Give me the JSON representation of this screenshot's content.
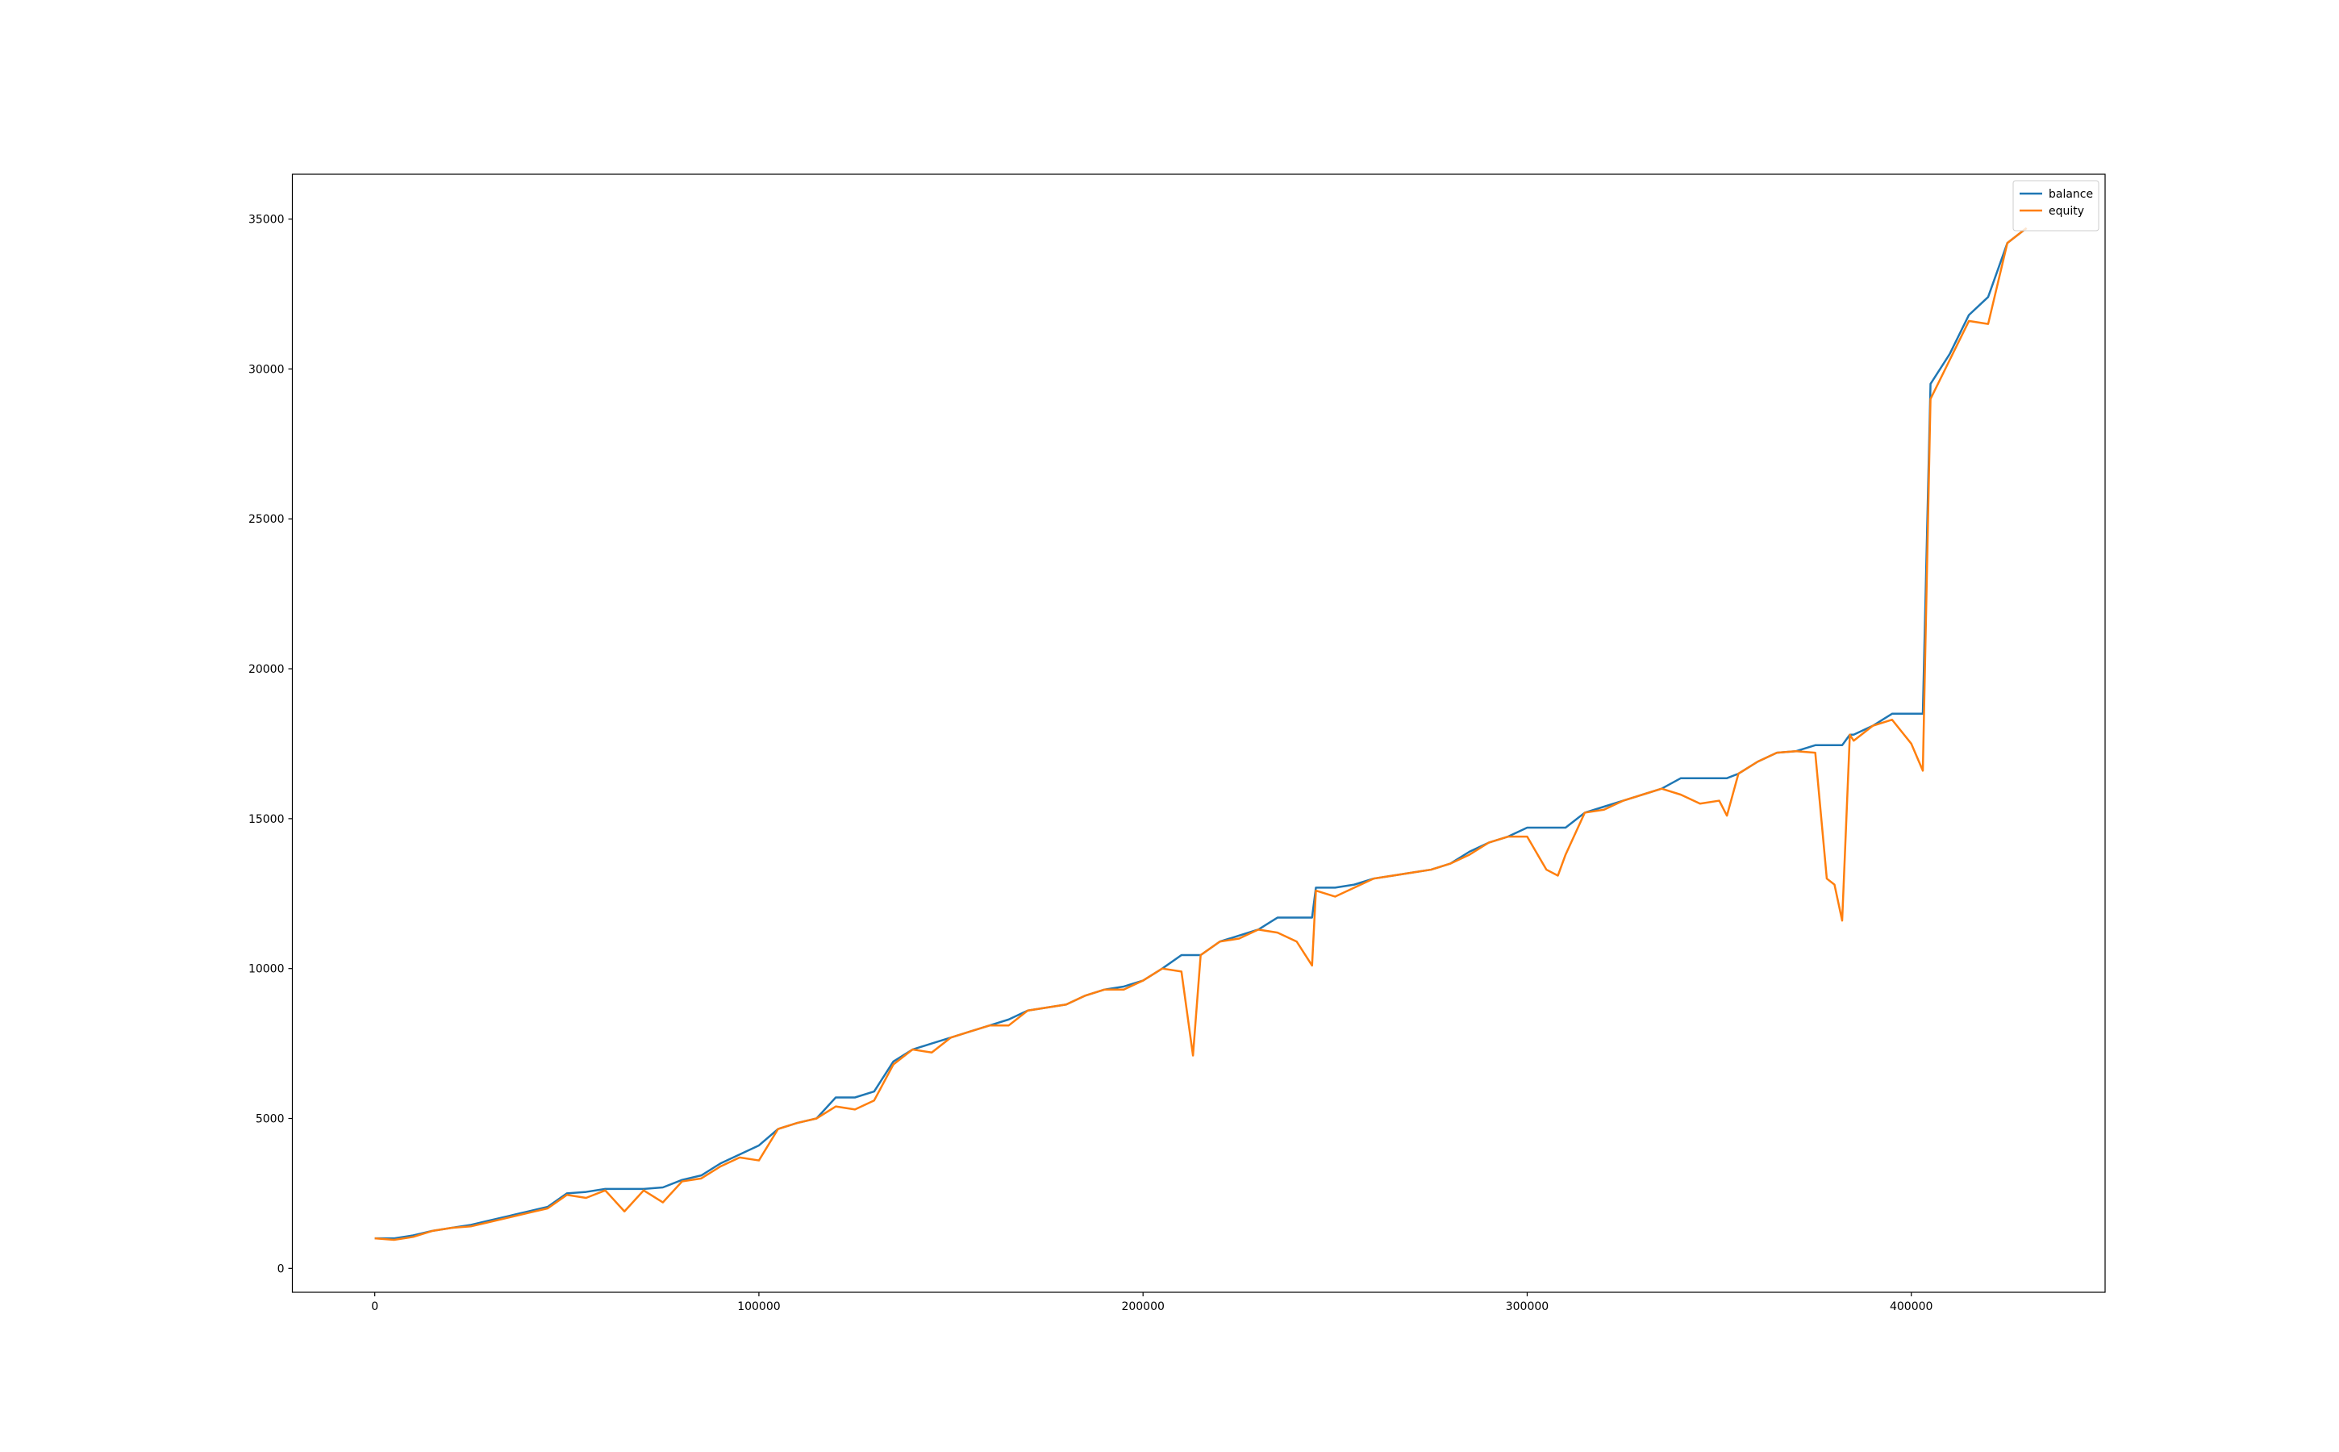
{
  "chart_data": {
    "type": "line",
    "x": [
      0,
      5000,
      10000,
      15000,
      20000,
      25000,
      30000,
      35000,
      40000,
      45000,
      50000,
      55000,
      60000,
      65000,
      70000,
      75000,
      80000,
      85000,
      90000,
      95000,
      100000,
      105000,
      110000,
      115000,
      120000,
      125000,
      130000,
      135000,
      140000,
      145000,
      150000,
      155000,
      160000,
      165000,
      170000,
      175000,
      180000,
      185000,
      190000,
      195000,
      200000,
      205000,
      210000,
      213000,
      215000,
      220000,
      225000,
      230000,
      235000,
      240000,
      244000,
      245000,
      250000,
      255000,
      260000,
      265000,
      270000,
      275000,
      280000,
      285000,
      290000,
      295000,
      300000,
      305000,
      308000,
      310000,
      315000,
      320000,
      325000,
      330000,
      335000,
      340000,
      345000,
      350000,
      352000,
      355000,
      360000,
      365000,
      370000,
      375000,
      378000,
      380000,
      382000,
      384000,
      385000,
      390000,
      395000,
      400000,
      403000,
      405000,
      410000,
      415000,
      420000,
      425000,
      430000
    ],
    "series": [
      {
        "name": "balance",
        "color": "#1f77b4",
        "values": [
          1000,
          1000,
          1100,
          1250,
          1350,
          1450,
          1600,
          1750,
          1900,
          2050,
          2500,
          2550,
          2650,
          2650,
          2650,
          2700,
          2950,
          3100,
          3500,
          3800,
          4100,
          4650,
          4850,
          5000,
          5700,
          5700,
          5900,
          6900,
          7300,
          7500,
          7700,
          7900,
          8100,
          8300,
          8600,
          8700,
          8800,
          9100,
          9300,
          9400,
          9600,
          10000,
          10450,
          10450,
          10450,
          10900,
          11100,
          11300,
          11700,
          11700,
          11700,
          12700,
          12700,
          12800,
          13000,
          13100,
          13200,
          13300,
          13500,
          13900,
          14200,
          14400,
          14700,
          14700,
          14700,
          14700,
          15200,
          15400,
          15600,
          15800,
          16000,
          16350,
          16350,
          16350,
          16350,
          16500,
          16900,
          17200,
          17250,
          17450,
          17450,
          17450,
          17450,
          17800,
          17800,
          18100,
          18500,
          18500,
          18500,
          29500,
          30500,
          31800,
          32400,
          34200,
          34700
        ]
      },
      {
        "name": "equity",
        "color": "#ff7f0e",
        "values": [
          1000,
          950,
          1050,
          1250,
          1350,
          1400,
          1550,
          1700,
          1850,
          2000,
          2450,
          2350,
          2600,
          1900,
          2600,
          2200,
          2900,
          3000,
          3400,
          3700,
          3600,
          4650,
          4850,
          5000,
          5400,
          5300,
          5600,
          6800,
          7300,
          7200,
          7700,
          7900,
          8100,
          8100,
          8600,
          8700,
          8800,
          9100,
          9300,
          9300,
          9600,
          10000,
          9900,
          7100,
          10450,
          10900,
          11000,
          11300,
          11200,
          10900,
          10100,
          12600,
          12400,
          12700,
          13000,
          13100,
          13200,
          13300,
          13500,
          13800,
          14200,
          14400,
          14400,
          13300,
          13100,
          13800,
          15200,
          15300,
          15600,
          15800,
          16000,
          15800,
          15500,
          15600,
          15100,
          16500,
          16900,
          17200,
          17250,
          17200,
          13000,
          12800,
          11600,
          17800,
          17600,
          18100,
          18300,
          17500,
          16600,
          29000,
          30300,
          31600,
          31500,
          34200,
          34700
        ]
      }
    ],
    "xlim": [
      -21450,
      450450
    ],
    "ylim": [
      -798,
      36495
    ],
    "xticks": [
      0,
      100000,
      200000,
      300000,
      400000
    ],
    "yticks": [
      0,
      5000,
      10000,
      15000,
      20000,
      25000,
      30000,
      35000
    ],
    "legend": "upper right"
  }
}
